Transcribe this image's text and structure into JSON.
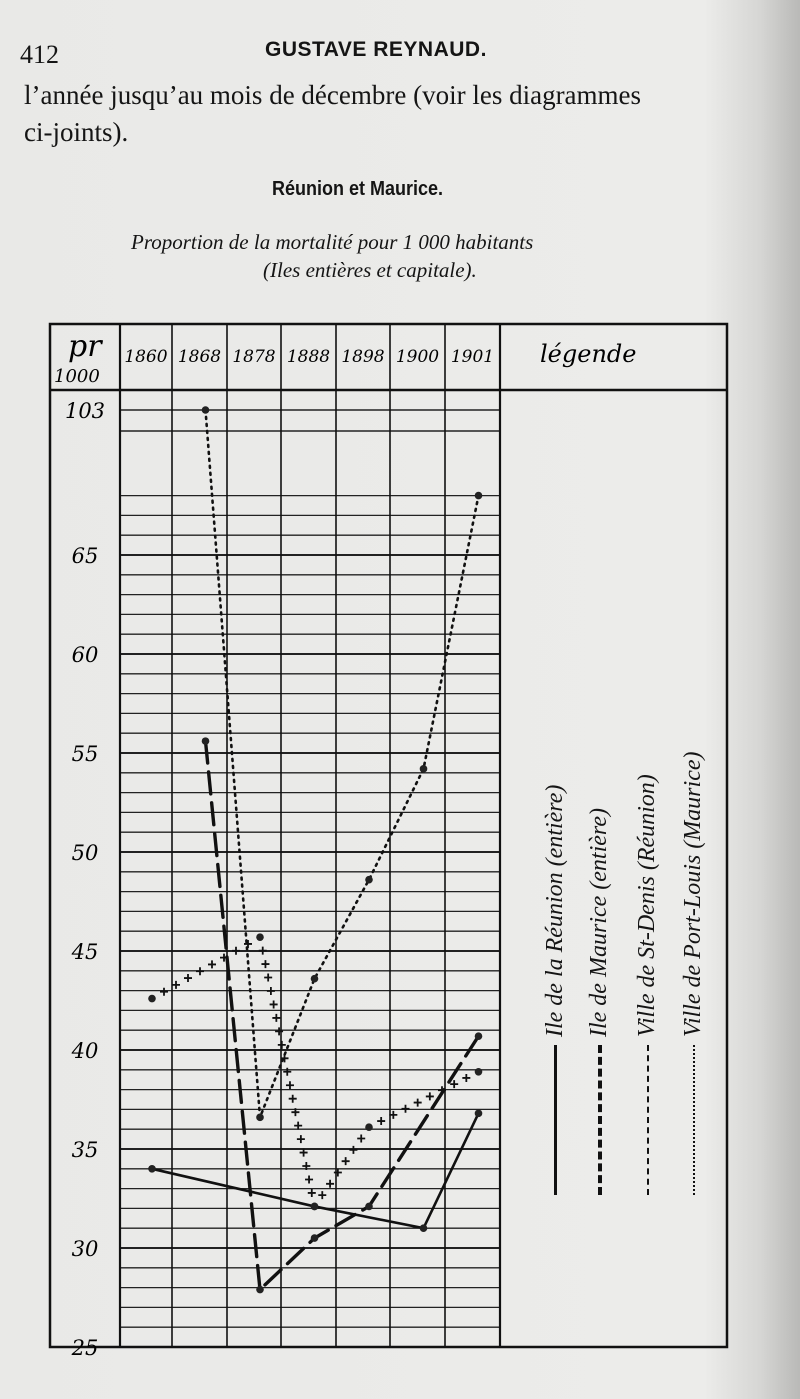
{
  "page": {
    "page_number": "412",
    "running_head": "GUSTAVE REYNAUD.",
    "body_lines": [
      "l’année jusqu’au mois de décembre (voir les diagrammes",
      "ci-joints)."
    ],
    "section_title": "Réunion et Maurice."
  },
  "chart_data": {
    "type": "line",
    "title": "Proportion de la mortalité pour 1 000 habitants",
    "subtitle": "(Iles entières et capitale).",
    "ylabel_top": "pr",
    "ylabel_bottom": "1000",
    "legend_title": "légende",
    "legend_placement": "right",
    "grid": true,
    "y_axis_broken": true,
    "categories": [
      "1860",
      "1868",
      "1878",
      "1888",
      "1898",
      "1900",
      "1901"
    ],
    "y_ticks": [
      103,
      65,
      60,
      55,
      50,
      45,
      40,
      35,
      30,
      25
    ],
    "ylim": [
      25,
      103
    ],
    "series": [
      {
        "name": "Ile de la Réunion (entière)",
        "style": "solid",
        "values": [
          34.0,
          null,
          null,
          32.1,
          null,
          31.0,
          36.8
        ]
      },
      {
        "name": "Ile de Maurice (entière)",
        "style": "long-dash",
        "values": [
          null,
          55.6,
          27.9,
          30.5,
          32.1,
          null,
          40.7
        ]
      },
      {
        "name": "Ville de St-Denis (Réunion)",
        "style": "short-dash",
        "values": [
          42.6,
          null,
          45.7,
          32.1,
          36.1,
          null,
          38.9
        ]
      },
      {
        "name": "Ville de Port-Louis (Maurice)",
        "style": "dotted",
        "values": [
          null,
          103,
          36.6,
          43.6,
          48.6,
          54.2,
          68
        ]
      }
    ]
  }
}
